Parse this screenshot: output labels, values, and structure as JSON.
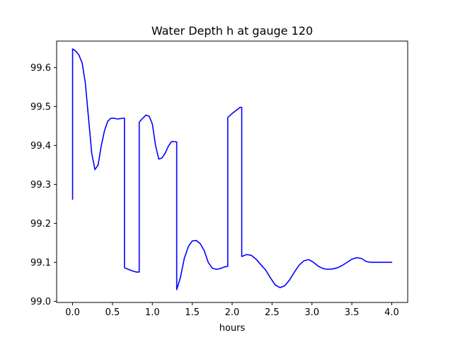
{
  "chart_data": {
    "type": "line",
    "title": "Water Depth h at gauge 120",
    "xlabel": "hours",
    "ylabel": "",
    "xlim": [
      -0.2,
      4.2
    ],
    "ylim": [
      98.997,
      99.668
    ],
    "xticks": [
      0.0,
      0.5,
      1.0,
      1.5,
      2.0,
      2.5,
      3.0,
      3.5,
      4.0
    ],
    "xtick_labels": [
      "0.0",
      "0.5",
      "1.0",
      "1.5",
      "2.0",
      "2.5",
      "3.0",
      "3.5",
      "4.0"
    ],
    "yticks": [
      99.0,
      99.1,
      99.2,
      99.3,
      99.4,
      99.5,
      99.6
    ],
    "ytick_labels": [
      "99.0",
      "99.1",
      "99.2",
      "99.3",
      "99.4",
      "99.5",
      "99.6"
    ],
    "grid": false,
    "series": [
      {
        "color": "#0000ff",
        "x": [
          0.0,
          0.0,
          0.04,
          0.08,
          0.12,
          0.16,
          0.2,
          0.24,
          0.28,
          0.32,
          0.36,
          0.4,
          0.44,
          0.48,
          0.52,
          0.56,
          0.6,
          0.64,
          0.65,
          0.65,
          0.7,
          0.75,
          0.8,
          0.835,
          0.835,
          0.88,
          0.92,
          0.96,
          1.0,
          1.04,
          1.08,
          1.12,
          1.16,
          1.2,
          1.24,
          1.28,
          1.305,
          1.305,
          1.35,
          1.4,
          1.45,
          1.5,
          1.55,
          1.6,
          1.65,
          1.7,
          1.75,
          1.8,
          1.85,
          1.9,
          1.945,
          1.945,
          2.0,
          2.05,
          2.1,
          2.12,
          2.12,
          2.18,
          2.24,
          2.3,
          2.36,
          2.42,
          2.48,
          2.54,
          2.6,
          2.66,
          2.72,
          2.78,
          2.84,
          2.9,
          2.96,
          3.02,
          3.08,
          3.14,
          3.2,
          3.26,
          3.32,
          3.38,
          3.44,
          3.5,
          3.56,
          3.62,
          3.68,
          3.74,
          3.8,
          3.86,
          3.92,
          3.98,
          4.0
        ],
        "y": [
          99.262,
          99.648,
          99.642,
          99.632,
          99.612,
          99.56,
          99.47,
          99.38,
          99.338,
          99.35,
          99.4,
          99.438,
          99.462,
          99.47,
          99.47,
          99.468,
          99.469,
          99.47,
          99.47,
          99.086,
          99.082,
          99.078,
          99.075,
          99.075,
          99.46,
          99.47,
          99.478,
          99.475,
          99.455,
          99.4,
          99.365,
          99.368,
          99.38,
          99.398,
          99.41,
          99.41,
          99.409,
          99.03,
          99.06,
          99.11,
          99.14,
          99.155,
          99.156,
          99.148,
          99.13,
          99.1,
          99.085,
          99.082,
          99.084,
          99.088,
          99.09,
          99.472,
          99.482,
          99.49,
          99.498,
          99.498,
          99.115,
          99.12,
          99.118,
          99.108,
          99.094,
          99.08,
          99.06,
          99.042,
          99.035,
          99.04,
          99.055,
          99.075,
          99.093,
          99.104,
          99.107,
          99.1,
          99.09,
          99.084,
          99.082,
          99.083,
          99.086,
          99.092,
          99.1,
          99.108,
          99.112,
          99.11,
          99.102,
          99.1,
          99.1,
          99.1,
          99.1,
          99.1,
          99.1
        ]
      }
    ]
  }
}
